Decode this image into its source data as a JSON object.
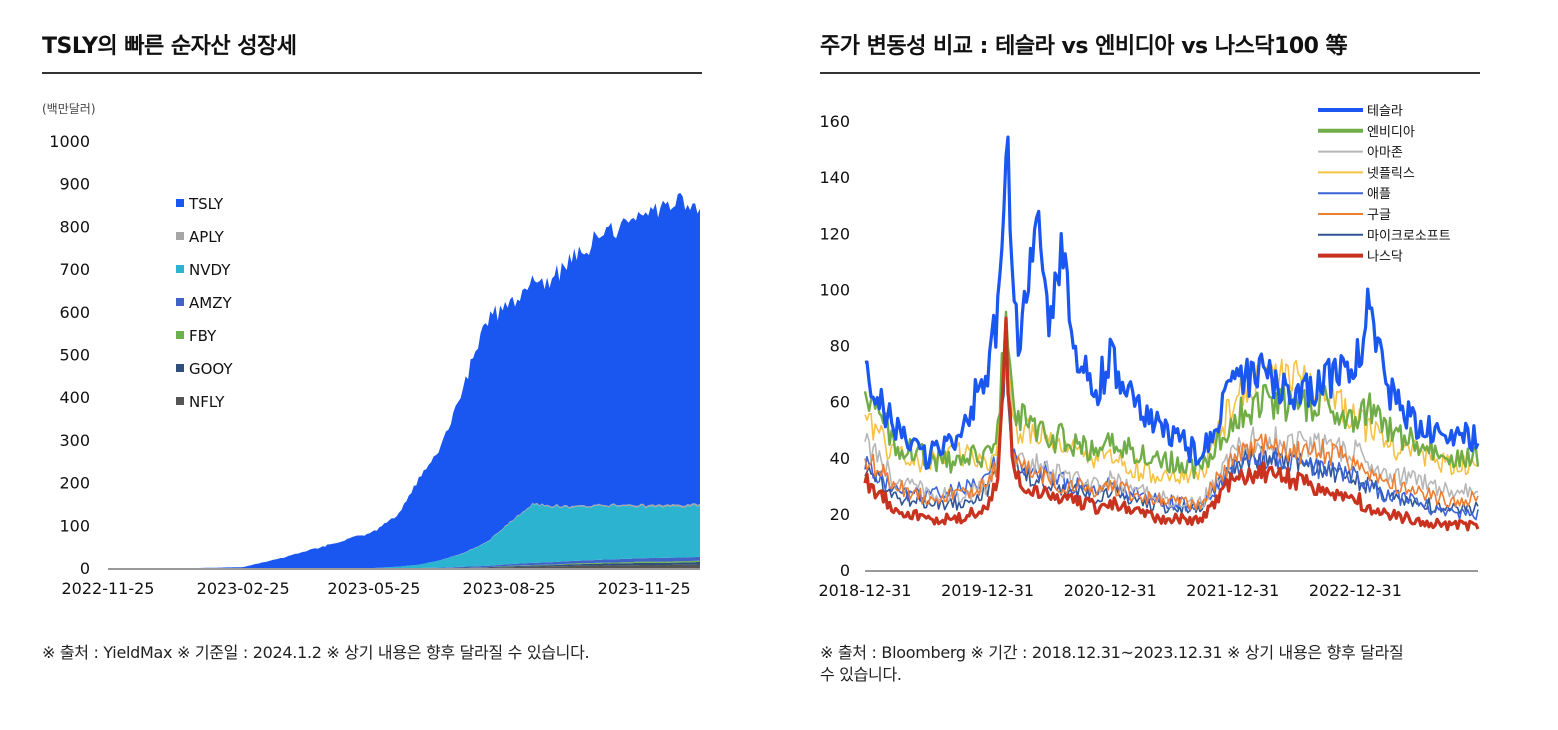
{
  "left": {
    "title": "TSLY의 빠른 순자산 성장세",
    "unit": "(백만달러)",
    "source": "※ 출처 : YieldMax ※ 기준일 : 2024.1.2 ※ 상기 내용은 향후 달라질 수 있습니다."
  },
  "right": {
    "title": "주가 변동성 비교 : 테슬라 vs 엔비디아 vs 나스닥100 等",
    "source_line1": "※ 출처 : Bloomberg ※ 기간 : 2018.12.31~2023.12.31 ※ 상기 내용은 향후 달라질",
    "source_line2": "수 있습니다."
  },
  "colors": {
    "TSLY": "#1a56f0",
    "APLY": "#a6a6a6",
    "NVDY": "#2bb3cf",
    "AMZY": "#3f63c7",
    "FBY": "#6ab04c",
    "GOOY": "#2e4f7a",
    "NFLY": "#555555",
    "tesla": "#1a56f0",
    "nvidia": "#70ad47",
    "amazon": "#b7b7b7",
    "netflix": "#f5c242",
    "apple": "#3a64d8",
    "google": "#ed7d31",
    "microsoft": "#2f5597",
    "nasdaq": "#c8321e"
  },
  "chart_data": [
    {
      "type": "area",
      "stacked": true,
      "title": "TSLY의 빠른 순자산 성장세",
      "ylabel": "(백만달러)",
      "ylim": [
        0,
        1000
      ],
      "yticks": [
        0,
        100,
        200,
        300,
        400,
        500,
        600,
        700,
        800,
        900,
        1000
      ],
      "xlabels": [
        "2022-11-25",
        "2023-02-25",
        "2023-05-25",
        "2023-08-25",
        "2023-11-25"
      ],
      "x": [
        "2022-11-25",
        "2022-12-25",
        "2023-01-25",
        "2023-02-25",
        "2023-03-25",
        "2023-04-25",
        "2023-05-25",
        "2023-06-10",
        "2023-06-25",
        "2023-07-10",
        "2023-07-25",
        "2023-08-10",
        "2023-08-25",
        "2023-09-10",
        "2023-09-25",
        "2023-10-10",
        "2023-10-25",
        "2023-11-10",
        "2023-11-25",
        "2023-12-10",
        "2024-01-02"
      ],
      "legend_position": "left",
      "series": [
        {
          "name": "NFLY",
          "values": [
            0,
            0,
            0,
            0,
            0,
            0,
            0,
            0,
            0,
            0,
            0,
            1,
            2,
            3,
            4,
            5,
            6,
            6,
            7,
            7,
            8
          ]
        },
        {
          "name": "GOOY",
          "values": [
            0,
            0,
            0,
            0,
            0,
            0,
            0,
            0,
            0,
            0,
            1,
            1,
            2,
            3,
            3,
            4,
            4,
            5,
            5,
            5,
            6
          ]
        },
        {
          "name": "FBY",
          "values": [
            0,
            0,
            0,
            0,
            0,
            0,
            0,
            0,
            0,
            0,
            0,
            0,
            1,
            1,
            1,
            2,
            2,
            2,
            3,
            3,
            3
          ]
        },
        {
          "name": "AMZY",
          "values": [
            0,
            0,
            0,
            0,
            0,
            0,
            0,
            0,
            0,
            1,
            2,
            3,
            4,
            5,
            6,
            6,
            7,
            8,
            8,
            9,
            9
          ]
        },
        {
          "name": "NVDY",
          "values": [
            0,
            0,
            0,
            0,
            0,
            0,
            0,
            3,
            8,
            18,
            32,
            55,
            95,
            135,
            130,
            125,
            125,
            125,
            120,
            120,
            120
          ]
        },
        {
          "name": "APLY",
          "values": [
            0,
            0,
            0,
            0,
            0,
            0,
            0,
            0,
            0,
            0,
            1,
            1,
            2,
            2,
            3,
            3,
            3,
            3,
            4,
            4,
            4
          ]
        },
        {
          "name": "TSLY",
          "values": [
            0,
            0,
            0,
            2,
            25,
            55,
            85,
            120,
            200,
            270,
            390,
            520,
            510,
            515,
            535,
            590,
            625,
            645,
            680,
            705,
            710
          ]
        }
      ],
      "totals": [
        0,
        0,
        0,
        2,
        25,
        55,
        85,
        123,
        208,
        289,
        426,
        581,
        616,
        664,
        682,
        735,
        772,
        794,
        827,
        853,
        860
      ]
    },
    {
      "type": "line",
      "title": "주가 변동성 비교 : 테슬라 vs 엔비디아 vs 나스닥100 等",
      "ylim": [
        0,
        160
      ],
      "yticks": [
        0,
        20,
        40,
        60,
        80,
        100,
        120,
        140,
        160
      ],
      "xlabels": [
        "2018-12-31",
        "2019-12-31",
        "2020-12-31",
        "2021-12-31",
        "2022-12-31"
      ],
      "xlim": [
        2019.0,
        2024.0
      ],
      "x": [
        2019.0,
        2019.25,
        2019.5,
        2019.75,
        2020.0,
        2020.08,
        2020.15,
        2020.2,
        2020.25,
        2020.4,
        2020.5,
        2020.6,
        2020.7,
        2020.9,
        2021.0,
        2021.25,
        2021.5,
        2021.75,
        2022.0,
        2022.25,
        2022.5,
        2022.75,
        2023.0,
        2023.1,
        2023.25,
        2023.5,
        2023.75,
        2024.0
      ],
      "legend_position": "top-right",
      "series": [
        {
          "name": "테슬라",
          "values": [
            68,
            50,
            40,
            48,
            70,
            90,
            157,
            105,
            80,
            122,
            85,
            118,
            75,
            65,
            75,
            55,
            48,
            40,
            68,
            70,
            62,
            68,
            70,
            95,
            65,
            52,
            46,
            48
          ]
        },
        {
          "name": "엔비디아",
          "values": [
            62,
            45,
            40,
            38,
            42,
            50,
            90,
            60,
            55,
            50,
            45,
            48,
            44,
            42,
            45,
            42,
            38,
            36,
            55,
            60,
            58,
            60,
            55,
            58,
            50,
            45,
            40,
            40
          ]
        },
        {
          "name": "아마존",
          "values": [
            45,
            32,
            28,
            26,
            30,
            38,
            80,
            45,
            40,
            38,
            35,
            34,
            32,
            30,
            32,
            28,
            25,
            24,
            42,
            48,
            45,
            44,
            42,
            40,
            35,
            32,
            28,
            28
          ]
        },
        {
          "name": "넷플릭스",
          "values": [
            55,
            40,
            38,
            42,
            38,
            45,
            85,
            55,
            48,
            50,
            46,
            44,
            42,
            40,
            40,
            35,
            32,
            34,
            60,
            70,
            68,
            64,
            55,
            50,
            45,
            42,
            38,
            36
          ]
        },
        {
          "name": "애플",
          "values": [
            38,
            28,
            26,
            28,
            32,
            40,
            80,
            42,
            38,
            36,
            34,
            32,
            30,
            28,
            30,
            26,
            24,
            22,
            36,
            40,
            38,
            36,
            34,
            30,
            27,
            24,
            20,
            20
          ]
        },
        {
          "name": "구글",
          "values": [
            40,
            30,
            26,
            27,
            30,
            38,
            78,
            44,
            38,
            34,
            32,
            30,
            30,
            28,
            30,
            26,
            24,
            24,
            40,
            44,
            42,
            42,
            38,
            35,
            32,
            28,
            25,
            26
          ]
        },
        {
          "name": "마이크로소프트",
          "values": [
            36,
            26,
            24,
            24,
            28,
            36,
            78,
            40,
            35,
            32,
            30,
            28,
            28,
            26,
            28,
            24,
            22,
            22,
            38,
            40,
            38,
            36,
            32,
            30,
            27,
            24,
            22,
            22
          ]
        },
        {
          "name": "나스닥",
          "values": [
            32,
            22,
            18,
            18,
            22,
            32,
            82,
            38,
            32,
            28,
            26,
            26,
            25,
            22,
            24,
            20,
            18,
            18,
            32,
            35,
            32,
            28,
            26,
            22,
            20,
            18,
            16,
            16
          ]
        }
      ]
    }
  ]
}
